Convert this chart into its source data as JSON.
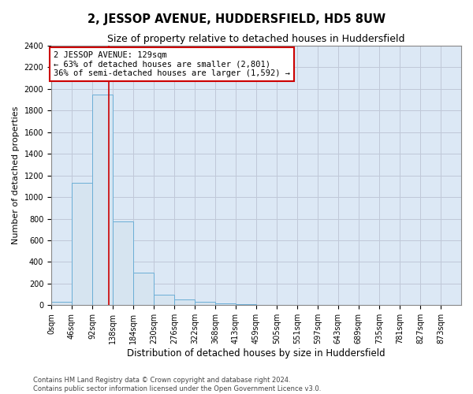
{
  "title": "2, JESSOP AVENUE, HUDDERSFIELD, HD5 8UW",
  "subtitle": "Size of property relative to detached houses in Huddersfield",
  "xlabel": "Distribution of detached houses by size in Huddersfield",
  "ylabel": "Number of detached properties",
  "footer_line1": "Contains HM Land Registry data © Crown copyright and database right 2024.",
  "footer_line2": "Contains public sector information licensed under the Open Government Licence v3.0.",
  "property_label": "2 JESSOP AVENUE: 129sqm",
  "annotation_line2": "← 63% of detached houses are smaller (2,801)",
  "annotation_line3": "36% of semi-detached houses are larger (1,592) →",
  "bin_edges": [
    0,
    46,
    92,
    138,
    184,
    230,
    276,
    322,
    368,
    413,
    459,
    505,
    551,
    597,
    643,
    689,
    735,
    781,
    827,
    873,
    919
  ],
  "bar_heights": [
    35,
    1135,
    1950,
    775,
    300,
    100,
    50,
    30,
    20,
    10,
    5,
    3,
    2,
    2,
    2,
    1,
    1,
    1,
    1,
    1
  ],
  "bar_color": "#d6e4f0",
  "bar_edge_color": "#6baed6",
  "vline_x": 129,
  "vline_color": "#cc0000",
  "ylim": [
    0,
    2400
  ],
  "yticks": [
    0,
    200,
    400,
    600,
    800,
    1000,
    1200,
    1400,
    1600,
    1800,
    2000,
    2200,
    2400
  ],
  "grid_color": "#c0c8d8",
  "bg_color": "#dce8f5",
  "annotation_box_color": "#cc0000",
  "title_fontsize": 10.5,
  "subtitle_fontsize": 9,
  "axis_label_fontsize": 8.5,
  "ylabel_fontsize": 8,
  "tick_fontsize": 7,
  "annotation_fontsize": 7.5,
  "footer_fontsize": 6
}
